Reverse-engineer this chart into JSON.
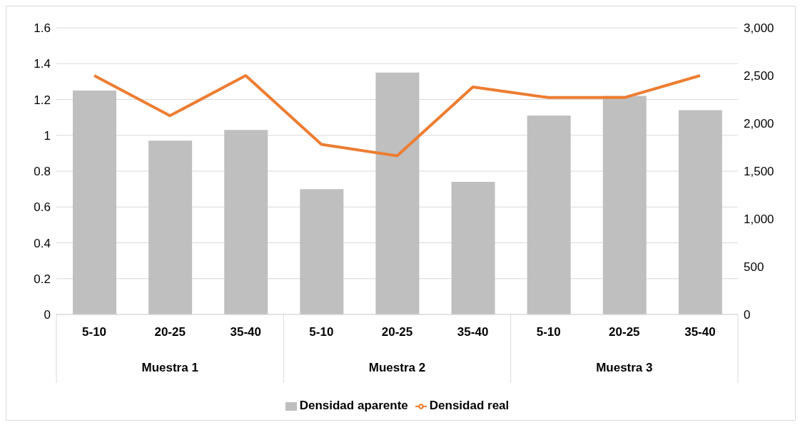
{
  "chart_data": {
    "type": "bar",
    "categories": [
      "5-10",
      "20-25",
      "35-40",
      "5-10",
      "20-25",
      "35-40",
      "5-10",
      "20-25",
      "35-40"
    ],
    "annotations": [
      "Muestra 1",
      "Muestra 2",
      "Muestra 3"
    ],
    "series": [
      {
        "name": "Densidad aparente",
        "color": "#bfbfbf",
        "values": [
          1.25,
          0.97,
          1.03,
          0.7,
          1.35,
          0.74,
          1.11,
          1.22,
          1.14
        ]
      },
      {
        "name": "Densidad real",
        "type": "line",
        "axis": "y2",
        "color": "#ed7d31",
        "values": [
          2500,
          2080,
          2500,
          1780,
          1660,
          2380,
          2270,
          2270,
          2500
        ]
      }
    ],
    "ylim": [
      0,
      1.6
    ],
    "yticks": [
      0,
      0.2,
      0.4,
      0.6,
      0.8,
      1,
      1.2,
      1.4,
      1.6
    ],
    "y2lim": [
      0,
      3000
    ],
    "y2ticks": [
      0,
      500,
      {
        "value": 1000,
        "label": "1,000"
      },
      {
        "value": 1500,
        "label": "1,500"
      },
      {
        "value": 2000,
        "label": "2,000"
      },
      {
        "value": 2500,
        "label": "2,500"
      },
      {
        "value": 3000,
        "label": "3,000"
      }
    ],
    "grid": "y",
    "legend": "bottom",
    "marker": "none",
    "line_style": "solid"
  }
}
